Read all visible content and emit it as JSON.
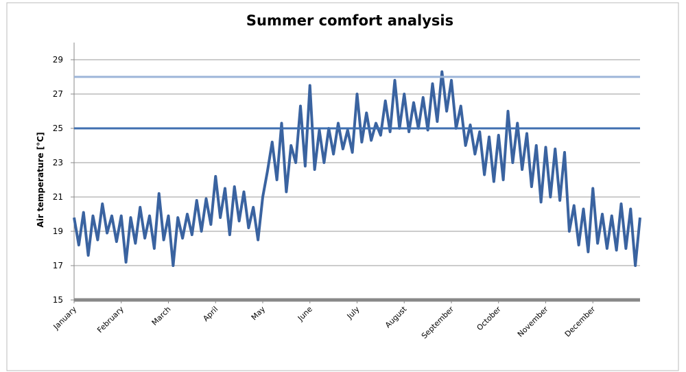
{
  "chart_data": {
    "type": "line",
    "title": "Summer comfort analysis",
    "y_label": "Air temperature [°C]",
    "xtick_labels": [
      "January",
      "February",
      "March",
      "April",
      "May",
      "June",
      "July",
      "August",
      "September",
      "October",
      "November",
      "December"
    ],
    "values": [
      19.8,
      18.2,
      20.1,
      17.6,
      19.9,
      18.5,
      20.6,
      18.9,
      19.9,
      18.4,
      19.9,
      17.2,
      19.8,
      18.3,
      20.4,
      18.6,
      19.9,
      18.0,
      21.2,
      18.5,
      19.9,
      17.0,
      19.8,
      18.6,
      20.0,
      18.8,
      20.8,
      19.0,
      20.9,
      19.4,
      22.2,
      19.8,
      21.5,
      18.8,
      21.6,
      19.6,
      21.3,
      19.2,
      20.4,
      18.5,
      21.0,
      22.5,
      24.2,
      22.0,
      25.3,
      21.3,
      24.0,
      23.0,
      26.3,
      22.8,
      27.5,
      22.6,
      24.9,
      23.0,
      25.0,
      23.5,
      25.3,
      23.8,
      24.9,
      23.6,
      27.0,
      24.2,
      25.9,
      24.3,
      25.3,
      24.6,
      26.6,
      24.8,
      27.8,
      25.0,
      27.0,
      24.8,
      26.5,
      25.0,
      26.8,
      24.9,
      27.6,
      25.4,
      28.3,
      26.0,
      27.8,
      25.0,
      26.3,
      24.0,
      25.2,
      23.5,
      24.8,
      22.3,
      24.5,
      21.9,
      24.6,
      22.0,
      26.0,
      23.0,
      25.3,
      22.6,
      24.7,
      21.6,
      24.0,
      20.7,
      23.9,
      21.0,
      23.8,
      20.8,
      23.6,
      19.0,
      20.5,
      18.2,
      20.3,
      17.8,
      21.5,
      18.3,
      20.0,
      18.0,
      19.9,
      17.9,
      20.6,
      18.0,
      20.3,
      17.0,
      19.8
    ],
    "color": "#3a63a0",
    "reference_lines": [
      {
        "value": 25,
        "color": "#3f6fb0"
      },
      {
        "value": 28,
        "color": "#9db5d8"
      }
    ],
    "ylim": [
      15,
      29
    ],
    "yticks": [
      15,
      17,
      19,
      21,
      23,
      25,
      27,
      29
    ],
    "grid": true
  }
}
